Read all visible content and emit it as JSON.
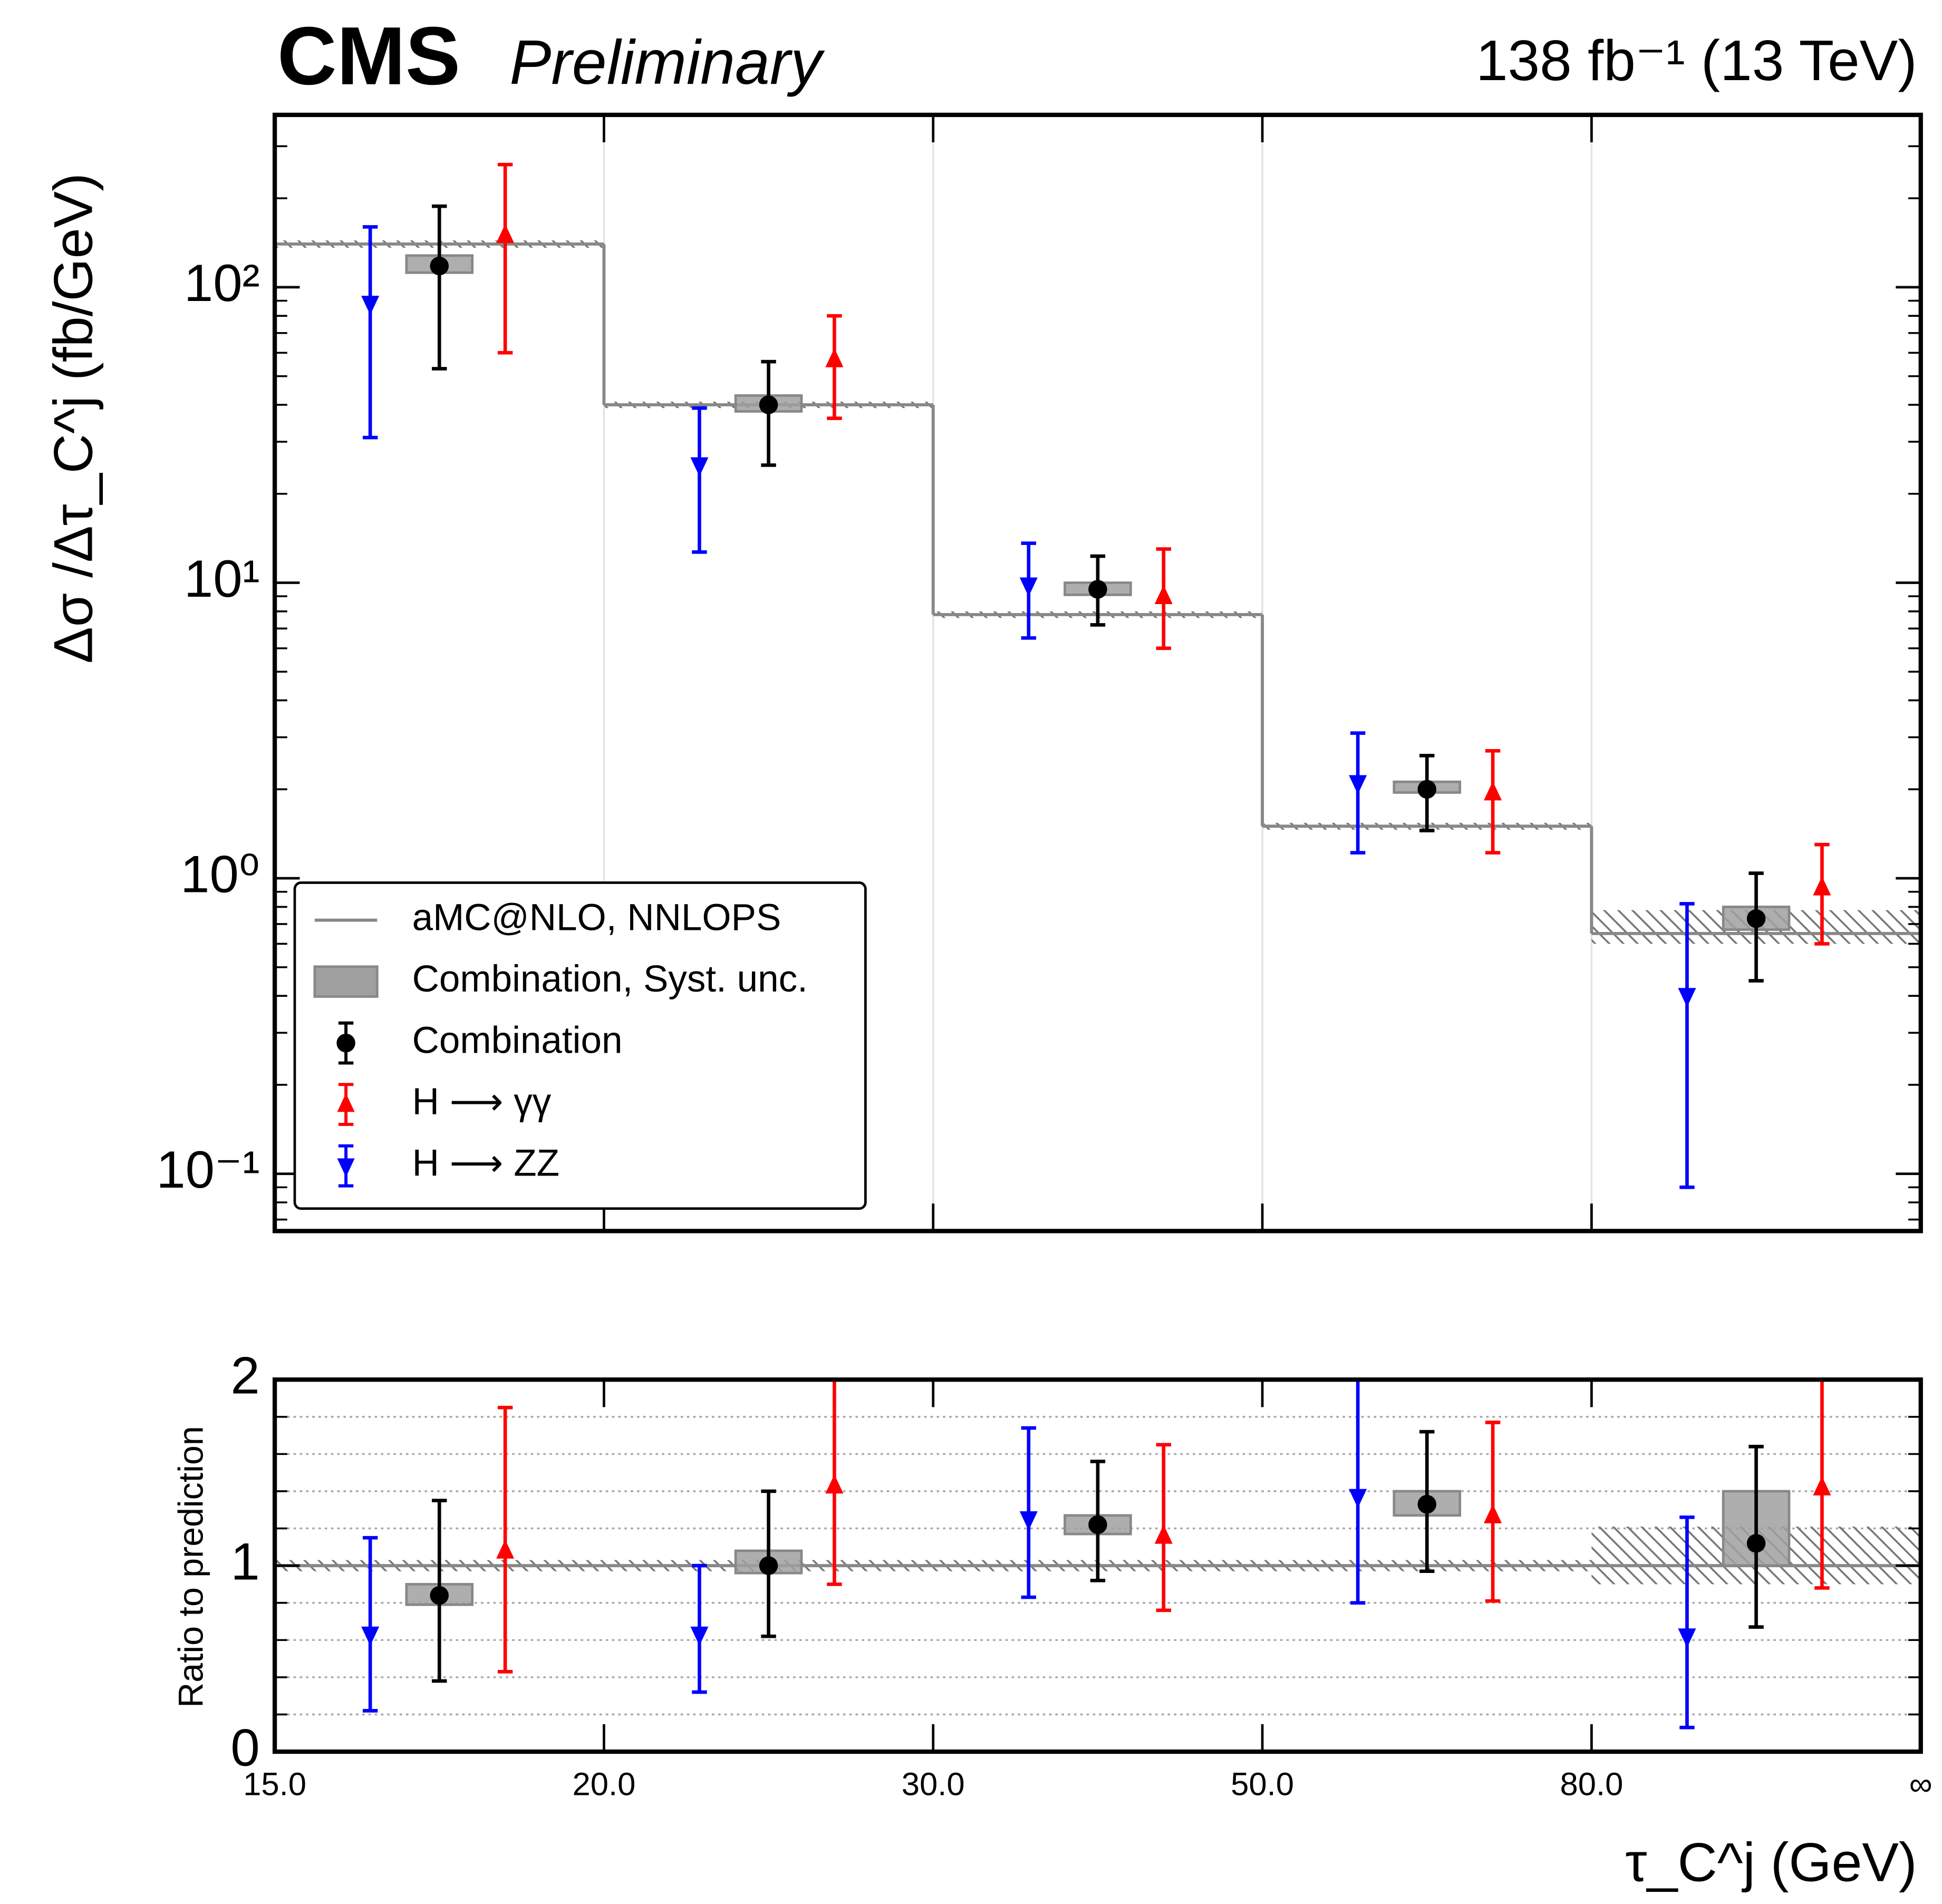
{
  "chart_data": [
    {
      "type": "errorbar",
      "experiment": "CMS",
      "status": "Preliminary",
      "luminosity": "138 fb⁻¹ (13 TeV)",
      "y_label": "Δσ /Δτ_C^j (fb/GeV)",
      "log_y": true,
      "xgrid": true,
      "ylim": [
        0.064,
        383
      ],
      "yticks": [
        {
          "value": 0.1,
          "label": "10⁻¹"
        },
        {
          "value": 1,
          "label": "10⁰"
        },
        {
          "value": 10,
          "label": "10¹"
        },
        {
          "value": 100,
          "label": "10²"
        }
      ],
      "minor_yticks": [
        0.07,
        0.08,
        0.09,
        0.2,
        0.3,
        0.4,
        0.5,
        0.6,
        0.7,
        0.8,
        0.9,
        2,
        3,
        4,
        5,
        6,
        7,
        8,
        9,
        20,
        30,
        40,
        50,
        60,
        70,
        80,
        90,
        200,
        300
      ],
      "legend": "lower left",
      "series": [
        {
          "name": "aMC@NLO, NNLOPS",
          "marker": "step",
          "color": "#888888",
          "values": [
            140,
            40,
            7.8,
            1.5,
            0.65
          ],
          "lower": [
            136,
            39,
            7.6,
            1.46,
            0.6
          ],
          "upper": [
            144,
            41,
            8.0,
            1.54,
            0.78
          ]
        },
        {
          "name": "Combination, Syst. unc.",
          "marker": "box",
          "color": "#a0a0a0",
          "lower": [
            112,
            38,
            9.1,
            1.95,
            0.67
          ],
          "upper": [
            128,
            43,
            10,
            2.12,
            0.8
          ]
        },
        {
          "name": "Combination",
          "marker": "circle",
          "color": "#000000",
          "values": [
            118,
            40,
            9.5,
            2.0,
            0.73
          ],
          "lower": [
            53,
            25,
            7.2,
            1.45,
            0.45
          ],
          "upper": [
            188,
            56,
            12.3,
            2.6,
            1.04
          ]
        },
        {
          "name": "H ⟶ γγ",
          "marker": "triangle-up",
          "color": "#ff0000",
          "values": [
            150,
            57,
            9.0,
            1.95,
            0.93
          ],
          "lower": [
            60,
            36,
            6.0,
            1.22,
            0.6
          ],
          "upper": [
            260,
            80,
            13,
            2.7,
            1.3
          ]
        },
        {
          "name": "H ⟶ ZZ",
          "marker": "triangle-down",
          "color": "#0000ff",
          "values": [
            88,
            25,
            9.8,
            2.1,
            0.4
          ],
          "lower": [
            31,
            12.7,
            6.5,
            1.22,
            0.09
          ],
          "upper": [
            160,
            39,
            13.6,
            3.1,
            0.82
          ]
        }
      ]
    },
    {
      "type": "errorbar",
      "y_label": "Ratio to prediction",
      "x_label": "τ_C^j (GeV)",
      "log_y": false,
      "x_edges": [
        "15.0",
        "20.0",
        "30.0",
        "50.0",
        "80.0",
        "∞"
      ],
      "ylim": [
        0,
        2
      ],
      "yticks": [
        0,
        1,
        2
      ],
      "minor_yticks": [
        0.2,
        0.4,
        0.6,
        0.8,
        1.2,
        1.4,
        1.6,
        1.8
      ],
      "minor_grid": true,
      "series": [
        {
          "marker": "step",
          "color": "#888888",
          "values": [
            1,
            1,
            1,
            1,
            1
          ],
          "lower": [
            0.97,
            0.97,
            0.97,
            0.97,
            0.9
          ],
          "upper": [
            1.03,
            1.03,
            1.03,
            1.03,
            1.21
          ]
        },
        {
          "marker": "box",
          "color": "#a0a0a0",
          "lower": [
            0.79,
            0.96,
            1.17,
            1.27,
            1.0
          ],
          "upper": [
            0.9,
            1.08,
            1.27,
            1.4,
            1.4
          ]
        },
        {
          "marker": "circle",
          "color": "#000000",
          "values": [
            0.84,
            1.0,
            1.22,
            1.33,
            1.12
          ],
          "lower": [
            0.38,
            0.62,
            0.92,
            0.97,
            0.67
          ],
          "upper": [
            1.35,
            1.4,
            1.56,
            1.72,
            1.64
          ]
        },
        {
          "marker": "triangle-up",
          "color": "#ff0000",
          "values": [
            1.08,
            1.43,
            1.16,
            1.27,
            1.42
          ],
          "lower": [
            0.43,
            0.9,
            0.76,
            0.81,
            0.88
          ],
          "upper": [
            1.85,
            2.1,
            1.65,
            1.77,
            2.1
          ]
        },
        {
          "marker": "triangle-down",
          "color": "#0000ff",
          "values": [
            0.63,
            0.63,
            1.25,
            1.37,
            0.62
          ],
          "lower": [
            0.22,
            0.32,
            0.83,
            0.8,
            0.13
          ],
          "upper": [
            1.15,
            1.0,
            1.74,
            2.1,
            1.26
          ]
        }
      ]
    }
  ]
}
